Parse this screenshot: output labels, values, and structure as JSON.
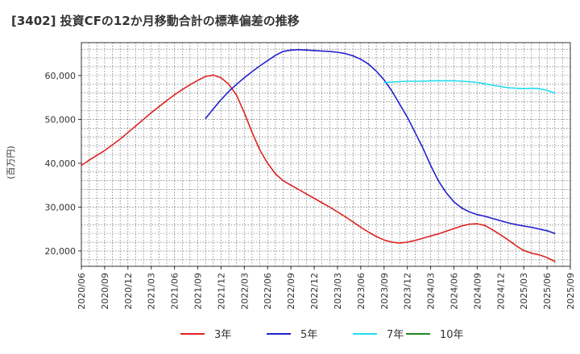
{
  "chart_data": {
    "type": "line",
    "title": "[3402]  投資CFの12か月移動合計の標準偏差の推移",
    "xlabel": "",
    "ylabel": "(百万円)",
    "ylim": [
      16500,
      67500
    ],
    "yticks": [
      20000,
      30000,
      40000,
      50000,
      60000
    ],
    "ytick_labels": [
      "20,000",
      "30,000",
      "40,000",
      "50,000",
      "60,000"
    ],
    "xlim": [
      "2020/06",
      "2025/09"
    ],
    "xtick_labels": [
      "2020/06",
      "2020/09",
      "2020/12",
      "2021/03",
      "2021/06",
      "2021/09",
      "2021/12",
      "2022/03",
      "2022/06",
      "2022/09",
      "2022/12",
      "2023/03",
      "2023/06",
      "2023/09",
      "2023/12",
      "2024/03",
      "2024/06",
      "2024/09",
      "2024/12",
      "2025/03",
      "2025/06",
      "2025/09"
    ],
    "grid": true,
    "legend_position": "bottom",
    "series": [
      {
        "name": "3年",
        "color": "#dd2222",
        "points": [
          [
            "2020/06",
            39500
          ],
          [
            "2020/07",
            40700
          ],
          [
            "2020/08",
            41800
          ],
          [
            "2020/09",
            42900
          ],
          [
            "2020/10",
            44200
          ],
          [
            "2020/11",
            45500
          ],
          [
            "2020/12",
            47000
          ],
          [
            "2021/01",
            48500
          ],
          [
            "2021/02",
            50000
          ],
          [
            "2021/03",
            51500
          ],
          [
            "2021/04",
            52900
          ],
          [
            "2021/05",
            54300
          ],
          [
            "2021/06",
            55600
          ],
          [
            "2021/07",
            56800
          ],
          [
            "2021/08",
            57900
          ],
          [
            "2021/09",
            58900
          ],
          [
            "2021/10",
            59800
          ],
          [
            "2021/11",
            60100
          ],
          [
            "2021/12",
            59500
          ],
          [
            "2022/01",
            58000
          ],
          [
            "2022/02",
            55500
          ],
          [
            "2022/03",
            51500
          ],
          [
            "2022/04",
            47000
          ],
          [
            "2022/05",
            43000
          ],
          [
            "2022/06",
            40000
          ],
          [
            "2022/07",
            37600
          ],
          [
            "2022/08",
            36000
          ],
          [
            "2022/09",
            35000
          ],
          [
            "2022/10",
            34000
          ],
          [
            "2022/11",
            33000
          ],
          [
            "2022/12",
            32000
          ],
          [
            "2023/01",
            31000
          ],
          [
            "2023/02",
            30000
          ],
          [
            "2023/03",
            28900
          ],
          [
            "2023/04",
            27800
          ],
          [
            "2023/05",
            26600
          ],
          [
            "2023/06",
            25400
          ],
          [
            "2023/07",
            24300
          ],
          [
            "2023/08",
            23300
          ],
          [
            "2023/09",
            22500
          ],
          [
            "2023/10",
            22000
          ],
          [
            "2023/11",
            21800
          ],
          [
            "2023/12",
            22000
          ],
          [
            "2024/01",
            22400
          ],
          [
            "2024/02",
            22900
          ],
          [
            "2024/03",
            23400
          ],
          [
            "2024/04",
            23900
          ],
          [
            "2024/05",
            24500
          ],
          [
            "2024/06",
            25100
          ],
          [
            "2024/07",
            25700
          ],
          [
            "2024/08",
            26100
          ],
          [
            "2024/09",
            26200
          ],
          [
            "2024/10",
            25800
          ],
          [
            "2024/11",
            24800
          ],
          [
            "2024/12",
            23700
          ],
          [
            "2025/01",
            22500
          ],
          [
            "2025/02",
            21200
          ],
          [
            "2025/03",
            20100
          ],
          [
            "2025/04",
            19500
          ],
          [
            "2025/05",
            19100
          ],
          [
            "2025/06",
            18500
          ],
          [
            "2025/07",
            17600
          ]
        ]
      },
      {
        "name": "5年",
        "color": "#2222cc",
        "points": [
          [
            "2021/10",
            50200
          ],
          [
            "2021/11",
            52400
          ],
          [
            "2021/12",
            54500
          ],
          [
            "2022/01",
            56400
          ],
          [
            "2022/02",
            58000
          ],
          [
            "2022/03",
            59500
          ],
          [
            "2022/04",
            60900
          ],
          [
            "2022/05",
            62200
          ],
          [
            "2022/06",
            63400
          ],
          [
            "2022/07",
            64600
          ],
          [
            "2022/08",
            65500
          ],
          [
            "2022/09",
            65800
          ],
          [
            "2022/10",
            65900
          ],
          [
            "2022/11",
            65800
          ],
          [
            "2022/12",
            65700
          ],
          [
            "2023/01",
            65600
          ],
          [
            "2023/02",
            65500
          ],
          [
            "2023/03",
            65300
          ],
          [
            "2023/04",
            65000
          ],
          [
            "2023/05",
            64500
          ],
          [
            "2023/06",
            63700
          ],
          [
            "2023/07",
            62600
          ],
          [
            "2023/08",
            61000
          ],
          [
            "2023/09",
            59000
          ],
          [
            "2023/10",
            56500
          ],
          [
            "2023/11",
            53500
          ],
          [
            "2023/12",
            50500
          ],
          [
            "2024/01",
            47000
          ],
          [
            "2024/02",
            43500
          ],
          [
            "2024/03",
            39500
          ],
          [
            "2024/04",
            36000
          ],
          [
            "2024/05",
            33300
          ],
          [
            "2024/06",
            31200
          ],
          [
            "2024/07",
            29800
          ],
          [
            "2024/08",
            28900
          ],
          [
            "2024/09",
            28300
          ],
          [
            "2024/10",
            27900
          ],
          [
            "2024/11",
            27400
          ],
          [
            "2024/12",
            26900
          ],
          [
            "2025/01",
            26400
          ],
          [
            "2025/02",
            26000
          ],
          [
            "2025/03",
            25700
          ],
          [
            "2025/04",
            25400
          ],
          [
            "2025/05",
            25000
          ],
          [
            "2025/06",
            24600
          ],
          [
            "2025/07",
            24000
          ]
        ]
      },
      {
        "name": "7年",
        "color": "#22ddee",
        "points": [
          [
            "2023/09",
            58400
          ],
          [
            "2023/10",
            58500
          ],
          [
            "2023/11",
            58600
          ],
          [
            "2023/12",
            58700
          ],
          [
            "2024/01",
            58700
          ],
          [
            "2024/02",
            58700
          ],
          [
            "2024/03",
            58800
          ],
          [
            "2024/04",
            58800
          ],
          [
            "2024/05",
            58800
          ],
          [
            "2024/06",
            58800
          ],
          [
            "2024/07",
            58700
          ],
          [
            "2024/08",
            58600
          ],
          [
            "2024/09",
            58400
          ],
          [
            "2024/10",
            58100
          ],
          [
            "2024/11",
            57800
          ],
          [
            "2024/12",
            57500
          ],
          [
            "2025/01",
            57200
          ],
          [
            "2025/02",
            57100
          ],
          [
            "2025/03",
            57000
          ],
          [
            "2025/04",
            57100
          ],
          [
            "2025/05",
            57000
          ],
          [
            "2025/06",
            56600
          ],
          [
            "2025/07",
            56000
          ]
        ]
      },
      {
        "name": "10年",
        "color": "#228822",
        "points": []
      }
    ]
  }
}
